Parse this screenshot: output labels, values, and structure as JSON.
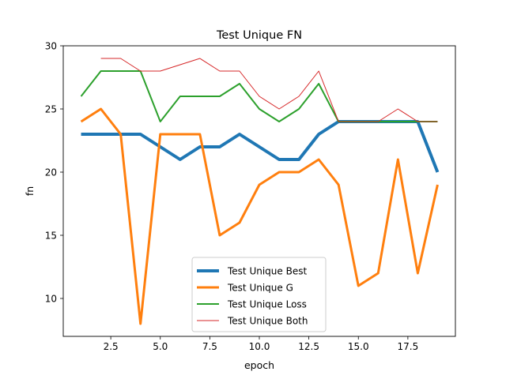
{
  "chart_data": {
    "type": "line",
    "title": "Test Unique FN",
    "xlabel": "epoch",
    "ylabel": "fn",
    "xlim": [
      0.1,
      19.9
    ],
    "ylim": [
      7.0,
      30.0
    ],
    "xticks": [
      2.5,
      5.0,
      7.5,
      10.0,
      12.5,
      15.0,
      17.5
    ],
    "xtick_labels": [
      "2.5",
      "5.0",
      "7.5",
      "10.0",
      "12.5",
      "15.0",
      "17.5"
    ],
    "yticks": [
      10,
      15,
      20,
      25,
      30
    ],
    "ytick_labels": [
      "10",
      "15",
      "20",
      "25",
      "30"
    ],
    "grid": false,
    "legend_position": "lower-center",
    "series": [
      {
        "name": "Test Unique Best",
        "color": "#1f77b4",
        "weight": "thickest",
        "x": [
          1,
          2,
          3,
          4,
          5,
          6,
          7,
          8,
          9,
          10,
          11,
          12,
          13,
          14,
          15,
          16,
          17,
          18,
          19
        ],
        "values": [
          23,
          23,
          23,
          23,
          22,
          21,
          22,
          22,
          23,
          22,
          21,
          21,
          23,
          24,
          24,
          24,
          24,
          24,
          20
        ]
      },
      {
        "name": "Test Unique G",
        "color": "#ff7f0e",
        "weight": "thick",
        "x": [
          1,
          2,
          3,
          4,
          5,
          6,
          7,
          8,
          9,
          10,
          11,
          12,
          13,
          14,
          15,
          16,
          17,
          18,
          19
        ],
        "values": [
          24,
          25,
          23,
          8,
          23,
          23,
          23,
          15,
          16,
          19,
          20,
          20,
          21,
          19,
          11,
          12,
          21,
          12,
          19
        ]
      },
      {
        "name": "Test Unique Loss",
        "color": "#2ca02c",
        "weight": "medium",
        "x": [
          1,
          2,
          3,
          4,
          5,
          6,
          7,
          8,
          9,
          10,
          11,
          12,
          13,
          14,
          15,
          16,
          17,
          18,
          19
        ],
        "values": [
          26,
          28,
          28,
          28,
          24,
          26,
          26,
          26,
          27,
          25,
          24,
          25,
          27,
          24,
          24,
          24,
          24,
          24,
          24
        ]
      },
      {
        "name": "Test Unique Both",
        "color": "#d62728",
        "weight": "thin",
        "x": [
          2,
          3,
          4,
          5,
          6,
          7,
          8,
          9,
          10,
          11,
          12,
          13,
          14,
          15,
          16,
          17,
          18,
          19
        ],
        "values": [
          29,
          29,
          28,
          28,
          28.5,
          29,
          28,
          28,
          26,
          25,
          26,
          28,
          24,
          24,
          24,
          25,
          24,
          24
        ]
      }
    ]
  }
}
